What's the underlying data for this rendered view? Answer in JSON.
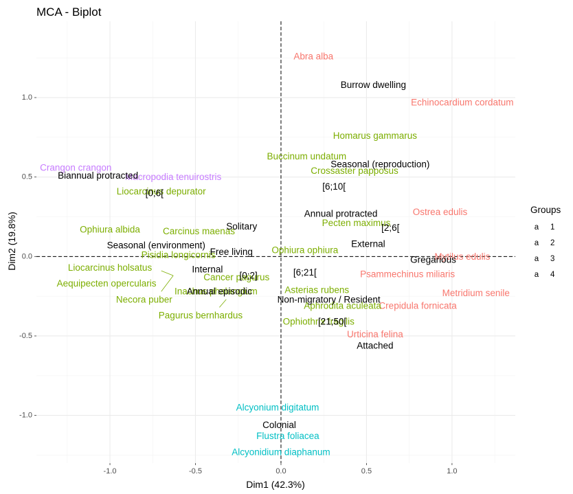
{
  "chart_data": {
    "type": "scatter",
    "title": "MCA - Biplot",
    "xlabel": "Dim1 (42.3%)",
    "ylabel": "Dim2 (19.8%)",
    "xlim": [
      -1.43,
      1.37
    ],
    "ylim": [
      -1.3,
      1.48
    ],
    "x_ticks": [
      -1.0,
      -0.5,
      0.0,
      0.5,
      1.0
    ],
    "x_tick_labels": [
      "-1.0",
      "-0.5",
      "0.0",
      "0.5",
      "1.0"
    ],
    "y_ticks": [
      -1.0,
      -0.5,
      0.0,
      0.5,
      1.0
    ],
    "y_tick_labels": [
      "-1.0",
      "-0.5",
      "0.0",
      "0.5",
      "1.0"
    ],
    "grid": true,
    "reference_lines": {
      "x": 0,
      "y": 0,
      "style": "dashed"
    },
    "legend": {
      "title": "Groups",
      "position": "right",
      "entries": [
        {
          "key": "a",
          "label": "1",
          "color": "#F8766D"
        },
        {
          "key": "a",
          "label": "2",
          "color": "#7CAE00"
        },
        {
          "key": "a",
          "label": "3",
          "color": "#00BFC4"
        },
        {
          "key": "a",
          "label": "4",
          "color": "#C77CFF"
        }
      ]
    },
    "series": [
      {
        "group": "1",
        "color": "#F8766D",
        "points": [
          {
            "label": "Abra alba",
            "x": 0.19,
            "y": 1.26
          },
          {
            "label": "Echinocardium cordatum",
            "x": 1.06,
            "y": 0.97
          },
          {
            "label": "Ostrea edulis",
            "x": 0.93,
            "y": 0.28
          },
          {
            "label": "Mytilus edulis",
            "x": 1.06,
            "y": 0.0
          },
          {
            "label": "Psammechinus miliaris",
            "x": 0.74,
            "y": -0.11
          },
          {
            "label": "Metridium senile",
            "x": 1.14,
            "y": -0.23
          },
          {
            "label": "Crepidula fornicata",
            "x": 0.8,
            "y": -0.31
          },
          {
            "label": "Urticina felina",
            "x": 0.55,
            "y": -0.49
          }
        ]
      },
      {
        "group": "2",
        "color": "#7CAE00",
        "points": [
          {
            "label": "Homarus gammarus",
            "x": 0.55,
            "y": 0.76
          },
          {
            "label": "Buccinum undatum",
            "x": 0.15,
            "y": 0.63
          },
          {
            "label": "Crossaster papposus",
            "x": 0.43,
            "y": 0.54
          },
          {
            "label": "Liocarcinus depurator",
            "x": -0.7,
            "y": 0.41
          },
          {
            "label": "Pecten maximus",
            "x": 0.44,
            "y": 0.21
          },
          {
            "label": "Ophiura albida",
            "x": -1.0,
            "y": 0.17
          },
          {
            "label": "Carcinus maenas",
            "x": -0.48,
            "y": 0.16
          },
          {
            "label": "Ophiura ophiura",
            "x": 0.14,
            "y": 0.04
          },
          {
            "label": "Pisidia longicornis",
            "x": -0.6,
            "y": 0.01
          },
          {
            "label": "Liocarcinus holsatus",
            "x": -1.0,
            "y": -0.07
          },
          {
            "label": "Cancer pagurus",
            "x": -0.26,
            "y": -0.13
          },
          {
            "label": "Aequipecten opercularis",
            "x": -1.02,
            "y": -0.17
          },
          {
            "label": "Inachus phalangium",
            "x": -0.38,
            "y": -0.22
          },
          {
            "label": "Necora puber",
            "x": -0.8,
            "y": -0.27
          },
          {
            "label": "Asterias rubens",
            "x": 0.21,
            "y": -0.21
          },
          {
            "label": "Aphrodita aculeata",
            "x": 0.36,
            "y": -0.31
          },
          {
            "label": "Pagurus bernhardus",
            "x": -0.47,
            "y": -0.37
          },
          {
            "label": "Ophiothrix fragilis",
            "x": 0.22,
            "y": -0.41
          }
        ]
      },
      {
        "group": "3",
        "color": "#00BFC4",
        "points": [
          {
            "label": "Alcyonium digitatum",
            "x": -0.02,
            "y": -0.95
          },
          {
            "label": "Flustra foliacea",
            "x": 0.04,
            "y": -1.13
          },
          {
            "label": "Alcyonidium diaphanum",
            "x": 0.0,
            "y": -1.23
          }
        ]
      },
      {
        "group": "4",
        "color": "#C77CFF",
        "points": [
          {
            "label": "Crangon crangon",
            "x": -1.2,
            "y": 0.56
          },
          {
            "label": "Macropodia tenuirostris",
            "x": -0.63,
            "y": 0.5
          }
        ]
      },
      {
        "group": "variables",
        "color": "#000000",
        "points": [
          {
            "label": "Burrow dwelling",
            "x": 0.54,
            "y": 1.08
          },
          {
            "label": "Seasonal (reproduction)",
            "x": 0.58,
            "y": 0.58
          },
          {
            "label": "Biannual protracted",
            "x": -1.07,
            "y": 0.51
          },
          {
            "label": "[6;10[",
            "x": 0.31,
            "y": 0.44
          },
          {
            "label": "[0;6[",
            "x": -0.74,
            "y": 0.4
          },
          {
            "label": "Annual protracted",
            "x": 0.35,
            "y": 0.27
          },
          {
            "label": "Solitary",
            "x": -0.23,
            "y": 0.19
          },
          {
            "label": "[2;6[",
            "x": 0.64,
            "y": 0.18
          },
          {
            "label": "External",
            "x": 0.51,
            "y": 0.08
          },
          {
            "label": "Seasonal (environment)",
            "x": -0.73,
            "y": 0.07
          },
          {
            "label": "Free living",
            "x": -0.29,
            "y": 0.03
          },
          {
            "label": "Gregarious",
            "x": 0.89,
            "y": -0.02
          },
          {
            "label": "Internal",
            "x": -0.43,
            "y": -0.08
          },
          {
            "label": "[6;21[",
            "x": 0.14,
            "y": -0.1
          },
          {
            "label": "[0;2]",
            "x": -0.19,
            "y": -0.12
          },
          {
            "label": "Annual episodic",
            "x": -0.36,
            "y": -0.22
          },
          {
            "label": "Non-migratory / Resident",
            "x": 0.28,
            "y": -0.27
          },
          {
            "label": "[21;50[",
            "x": 0.3,
            "y": -0.41
          },
          {
            "label": "Attached",
            "x": 0.55,
            "y": -0.56
          },
          {
            "label": "Colonial",
            "x": -0.01,
            "y": -1.06
          }
        ]
      }
    ],
    "repel_segments": [
      {
        "from": [
          -0.7,
          -0.09
        ],
        "to": [
          -0.63,
          -0.12
        ]
      },
      {
        "from": [
          -0.7,
          -0.22
        ],
        "to": [
          -0.63,
          -0.12
        ]
      },
      {
        "from": [
          -0.36,
          -0.32
        ],
        "to": [
          -0.32,
          -0.27
        ]
      }
    ]
  }
}
